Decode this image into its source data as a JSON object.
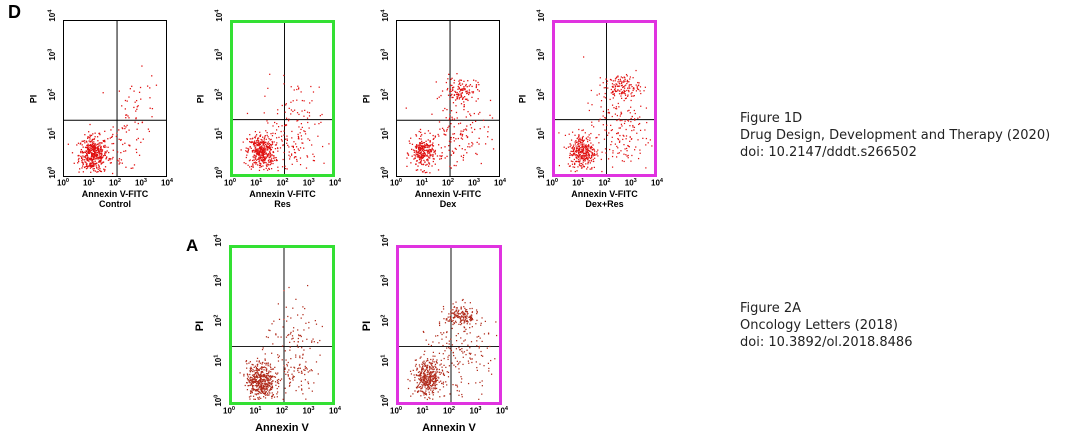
{
  "figure_d": {
    "letter": "D",
    "panels": [
      {
        "id": "control",
        "x_label": "Annexin V-FITC",
        "condition": "Control",
        "y_label": "PI",
        "border": "#000000"
      },
      {
        "id": "res",
        "x_label": "Annexin V-FITC",
        "condition": "Res",
        "y_label": "PI",
        "border": "#33e033"
      },
      {
        "id": "dex",
        "x_label": "Annexin V-FITC",
        "condition": "Dex",
        "y_label": "PI",
        "border": "#000000"
      },
      {
        "id": "dexres",
        "x_label": "Annexin V-FITC",
        "condition": "Dex+Res",
        "y_label": "PI",
        "border": "#e033e0"
      }
    ]
  },
  "figure_a": {
    "letter": "A",
    "panels": [
      {
        "id": "a1",
        "x_label": "Annexin V",
        "y_label": "PI",
        "border": "#33e033"
      },
      {
        "id": "a2",
        "x_label": "Annexin V",
        "y_label": "PI",
        "border": "#e033e0"
      }
    ]
  },
  "ticks": {
    "base": "10",
    "exponents": [
      "0",
      "1",
      "2",
      "3",
      "4"
    ]
  },
  "captions": {
    "fig1d": {
      "title": "Figure 1D",
      "journal": "Drug Design, Development and Therapy (2020)",
      "doi": "doi: 10.2147/dddt.s266502"
    },
    "fig2a": {
      "title": "Figure 2A",
      "journal": "Oncology Letters (2018)",
      "doi": "doi: 10.3892/ol.2018.8486"
    }
  },
  "colors": {
    "dots_d": "#e01010",
    "dots_a": "#b02a1a",
    "highlight_green": "#33e033",
    "highlight_magenta": "#e033e0"
  }
}
